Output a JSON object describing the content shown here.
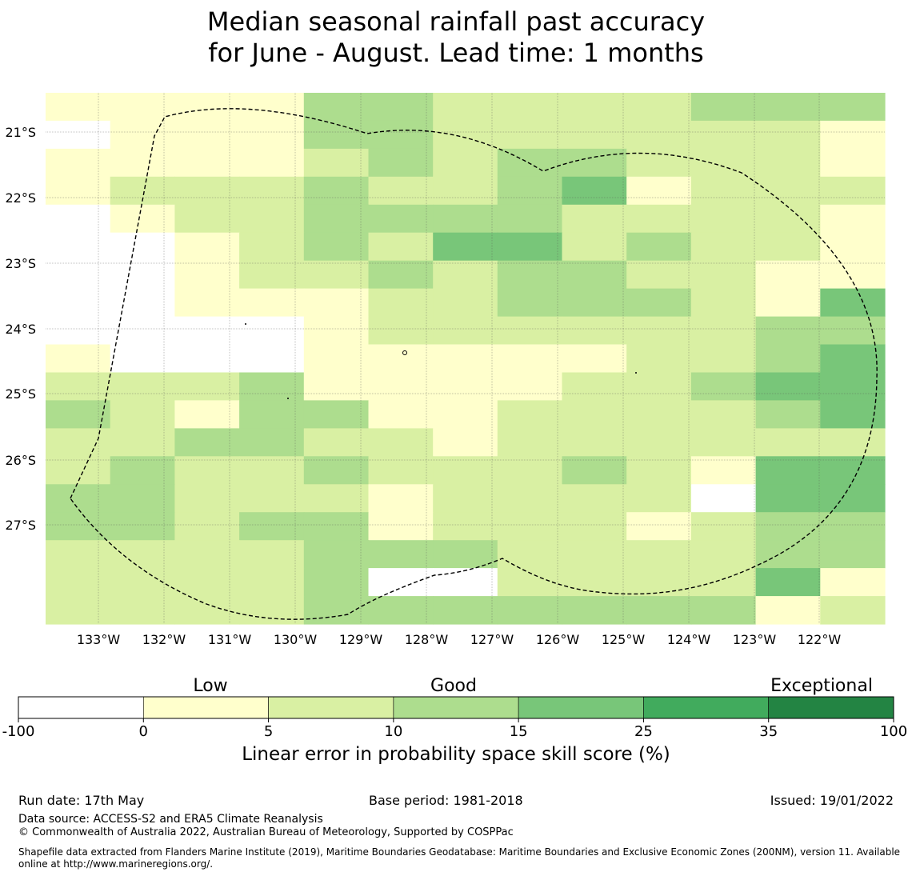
{
  "title_line1": "Median seasonal rainfall past accuracy",
  "title_line2": "for June - August. Lead time: 1 months",
  "map": {
    "lat_labels": [
      "21°S",
      "22°S",
      "23°S",
      "24°S",
      "25°S",
      "26°S",
      "27°S"
    ],
    "lon_labels": [
      "133°W",
      "132°W",
      "131°W",
      "130°W",
      "129°W",
      "128°W",
      "127°W",
      "126°W",
      "125°W",
      "124°W",
      "123°W",
      "122°W"
    ],
    "colors": [
      "#ffffff",
      "#ffffcc",
      "#d9f0a3",
      "#addd8e",
      "#78c679",
      "#41ab5d",
      "#238443"
    ],
    "grid_rows": [
      "1111332222333",
      "0111332222221",
      "1111232332221",
      "1222322341222",
      "0122333322221",
      "0012324423221",
      "0012232332211",
      "0011122333214",
      "0000122222233",
      "1000111112234",
      "2223111122344",
      "3213311222234",
      "2233221222222",
      "2322322232144",
      "3322212222044",
      "3323312221233",
      "2222333222233",
      "2222300222241",
      "2222333333312"
    ]
  },
  "colorbar": {
    "categories": [
      "Low",
      "Good",
      "Exceptional"
    ],
    "ticks": [
      "-100",
      "0",
      "5",
      "10",
      "15",
      "25",
      "35",
      "100"
    ],
    "label": "Linear error in probability space skill score (%)"
  },
  "footer": {
    "run_date": "Run date: 17th May",
    "base_period": "Base period: 1981-2018",
    "issued": "Issued: 19/01/2022",
    "data_source": "Data source: ACCESS-S2 and ERA5 Climate Reanalysis",
    "copyright": "© Commonwealth of Australia 2022, Australian Bureau of Meteorology, Supported by COSPPac",
    "shapefile": "Shapefile data extracted from Flanders Marine Institute (2019), Maritime Boundaries Geodatabase: Maritime Boundaries and Exclusive Economic Zones (200NM), version 11. Available online at http://www.marineregions.org/."
  }
}
